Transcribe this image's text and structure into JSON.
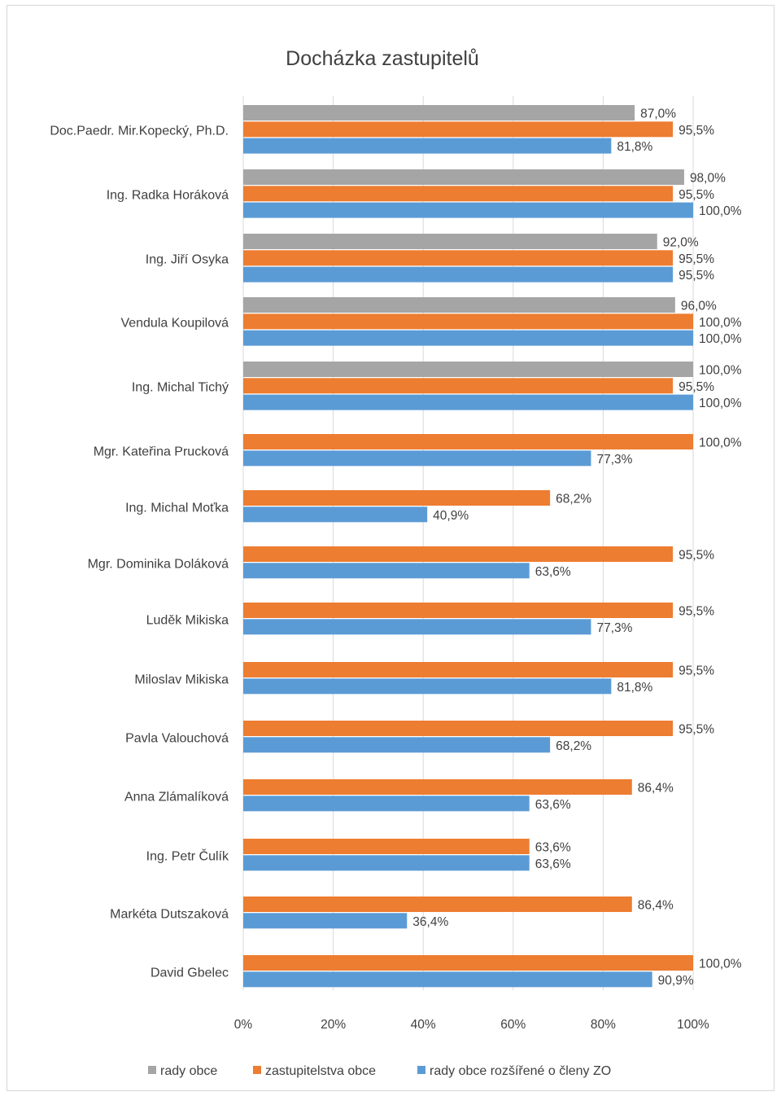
{
  "chart_data": {
    "type": "bar",
    "orientation": "horizontal",
    "title": "Docházka zastupitelů",
    "xlabel": "",
    "ylabel": "",
    "xlim": [
      0,
      1
    ],
    "x_ticks": [
      "0%",
      "20%",
      "40%",
      "60%",
      "80%",
      "100%"
    ],
    "grid": true,
    "legend_position": "bottom",
    "categories": [
      "Doc.Paedr. Mir.Kopecký, Ph.D.",
      "Ing. Radka Horáková",
      "Ing. Jiří Osyka",
      "Vendula Koupilová",
      "Ing. Michal Tichý",
      "Mgr. Kateřina Prucková",
      "Ing. Michal Moťka",
      "Mgr. Dominika Doláková",
      "Luděk Mikiska",
      "Miloslav Mikiska",
      "Pavla Valouchová",
      "Anna Zlámalíková",
      "Ing. Petr Čulík",
      "Markéta Dutszaková",
      "David Gbelec"
    ],
    "series": [
      {
        "name": "rady obce",
        "color": "#a5a5a5",
        "values": [
          0.87,
          0.98,
          0.92,
          0.96,
          1.0,
          null,
          null,
          null,
          null,
          null,
          null,
          null,
          null,
          null,
          null
        ],
        "labels": [
          "87,0%",
          "98,0%",
          "92,0%",
          "96,0%",
          "100,0%",
          null,
          null,
          null,
          null,
          null,
          null,
          null,
          null,
          null,
          null
        ]
      },
      {
        "name": "zastupitelstva obce",
        "color": "#ed7d31",
        "values": [
          0.955,
          0.955,
          0.955,
          1.0,
          0.955,
          1.0,
          0.682,
          0.955,
          0.955,
          0.955,
          0.955,
          0.864,
          0.636,
          0.864,
          1.0
        ],
        "labels": [
          "95,5%",
          "95,5%",
          "95,5%",
          "100,0%",
          "95,5%",
          "100,0%",
          "68,2%",
          "95,5%",
          "95,5%",
          "95,5%",
          "95,5%",
          "86,4%",
          "63,6%",
          "86,4%",
          "100,0%"
        ]
      },
      {
        "name": "rady obce rozšířené o členy ZO",
        "color": "#5b9bd5",
        "values": [
          0.818,
          1.0,
          0.955,
          1.0,
          1.0,
          0.773,
          0.409,
          0.636,
          0.773,
          0.818,
          0.682,
          0.636,
          0.636,
          0.364,
          0.909
        ],
        "labels": [
          "81,8%",
          "100,0%",
          "95,5%",
          "100,0%",
          "100,0%",
          "77,3%",
          "40,9%",
          "63,6%",
          "77,3%",
          "81,8%",
          "68,2%",
          "63,6%",
          "63,6%",
          "36,4%",
          "90,9%"
        ]
      }
    ]
  }
}
